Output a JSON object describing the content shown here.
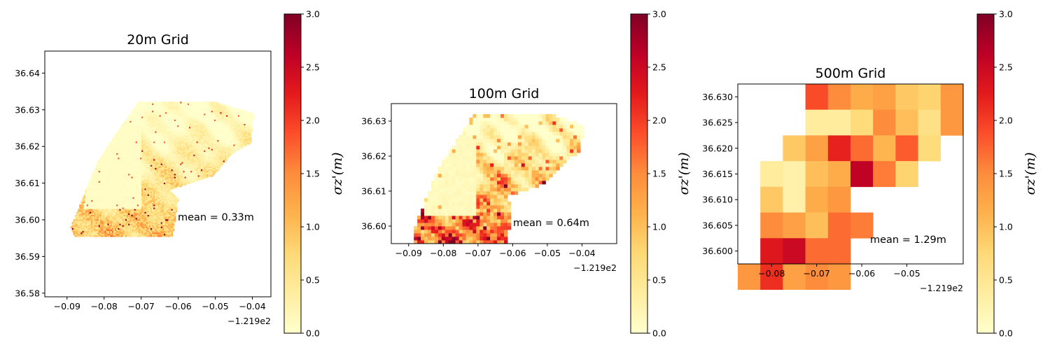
{
  "chart_data": [
    {
      "type": "heatmap",
      "title": "20m Grid",
      "annotation": "mean = 0.33m",
      "x_offset_label": "−1.219e2",
      "xlim": [
        -0.096,
        -0.035
      ],
      "ylim": [
        36.579,
        36.646
      ],
      "x_ticks": [
        -0.09,
        -0.08,
        -0.07,
        -0.06,
        -0.05,
        -0.04
      ],
      "x_tick_labels": [
        "−0.09",
        "−0.08",
        "−0.07",
        "−0.06",
        "−0.05",
        "−0.04"
      ],
      "y_ticks": [
        36.58,
        36.59,
        36.6,
        36.61,
        36.62,
        36.63,
        36.64
      ],
      "y_tick_labels": [
        "36.58",
        "36.59",
        "36.60",
        "36.61",
        "36.62",
        "36.63",
        "36.64"
      ],
      "cell_size": 0.0004,
      "mean_value": 0.33,
      "colorbar": {
        "label": "σz'(m)",
        "range": [
          0.0,
          3.0
        ],
        "ticks": [
          "0.0",
          "0.5",
          "1.0",
          "1.5",
          "2.0",
          "2.5",
          "3.0"
        ]
      }
    },
    {
      "type": "heatmap",
      "title": "100m Grid",
      "annotation": "mean = 0.64m",
      "x_offset_label": "−1.219e2",
      "xlim": [
        -0.095,
        -0.03
      ],
      "ylim": [
        36.595,
        36.635
      ],
      "x_ticks": [
        -0.09,
        -0.08,
        -0.07,
        -0.06,
        -0.05,
        -0.04
      ],
      "x_tick_labels": [
        "−0.09",
        "−0.08",
        "−0.07",
        "−0.06",
        "−0.05",
        "−0.04"
      ],
      "y_ticks": [
        36.6,
        36.61,
        36.62,
        36.63
      ],
      "y_tick_labels": [
        "36.60",
        "36.61",
        "36.62",
        "36.63"
      ],
      "cell_size": 0.001,
      "mean_value": 0.64,
      "colorbar": {
        "label": "σz'(m)",
        "range": [
          0.0,
          3.0
        ],
        "ticks": [
          "0.0",
          "0.5",
          "1.0",
          "1.5",
          "2.0",
          "2.5",
          "3.0"
        ]
      }
    },
    {
      "type": "heatmap",
      "title": "500m Grid",
      "annotation": "mean = 1.29m",
      "x_offset_label": "−1.219e2",
      "xlim": [
        -0.0875,
        -0.0375
      ],
      "ylim": [
        36.5975,
        36.6325
      ],
      "x_ticks": [
        -0.08,
        -0.07,
        -0.06,
        -0.05
      ],
      "x_tick_labels": [
        "−0.08",
        "−0.07",
        "−0.06",
        "−0.05"
      ],
      "y_ticks": [
        36.6,
        36.605,
        36.61,
        36.615,
        36.62,
        36.625,
        36.63
      ],
      "y_tick_labels": [
        "36.600",
        "36.605",
        "36.610",
        "36.615",
        "36.620",
        "36.625",
        "36.630"
      ],
      "cell_size": 0.005,
      "grid_x0": -0.0875,
      "grid_y_top": 36.6325,
      "cells": [
        [
          null,
          null,
          null,
          1.9,
          1.5,
          1.2,
          1.3,
          0.9,
          0.8,
          1.4
        ],
        [
          null,
          null,
          null,
          0.4,
          0.4,
          0.7,
          1.5,
          1.0,
          0.6,
          1.4
        ],
        [
          null,
          null,
          0.9,
          1.3,
          2.2,
          1.7,
          1.1,
          1.8,
          0.7,
          null
        ],
        [
          null,
          0.4,
          0.3,
          1.0,
          1.2,
          2.6,
          1.6,
          0.8,
          null,
          null
        ],
        [
          null,
          0.9,
          0.3,
          1.2,
          1.4,
          null,
          null,
          null,
          null,
          null
        ],
        [
          null,
          1.5,
          1.3,
          1.0,
          1.7,
          1.6,
          null,
          null,
          null,
          null
        ],
        [
          null,
          2.3,
          2.5,
          1.7,
          1.7,
          null,
          null,
          null,
          null,
          null
        ],
        [
          1.4,
          2.1,
          1.3,
          1.5,
          1.4,
          null,
          null,
          null,
          null,
          null
        ]
      ],
      "mean_value": 1.29,
      "colorbar": {
        "label": "σz'(m)",
        "range": [
          0.0,
          3.0
        ],
        "ticks": [
          "0.0",
          "0.5",
          "1.0",
          "1.5",
          "2.0",
          "2.5",
          "3.0"
        ]
      }
    }
  ]
}
